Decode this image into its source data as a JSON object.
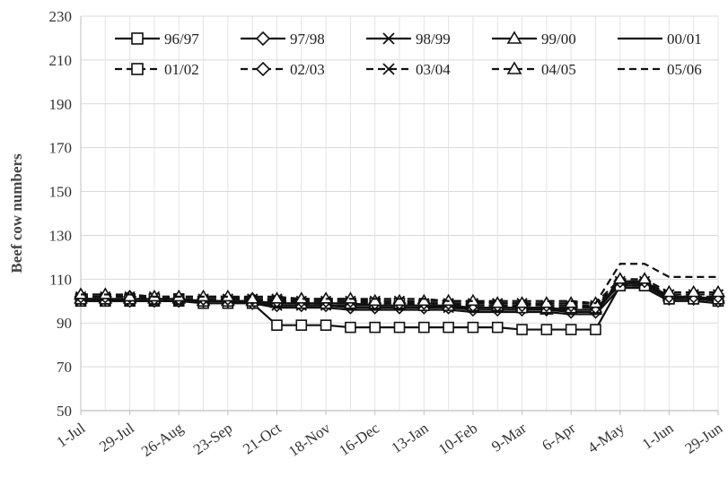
{
  "chart_data": {
    "type": "line",
    "ylabel": "Beef cow numbers",
    "ylim": [
      50,
      230
    ],
    "yticks": [
      50,
      70,
      90,
      110,
      130,
      150,
      170,
      190,
      210,
      230
    ],
    "grid": true,
    "legend_position": "top",
    "categories": [
      "1-Jul",
      "29-Jul",
      "26-Aug",
      "23-Sep",
      "21-Oct",
      "18-Nov",
      "16-Dec",
      "13-Jan",
      "10-Feb",
      "9-Mar",
      "6-Apr",
      "4-May",
      "1-Jun",
      "29-Jun"
    ],
    "x_tick_labels": [
      "1-Jul",
      "29-Jul",
      "26-Aug",
      "23-Sep",
      "21-Oct",
      "18-Nov",
      "16-Dec",
      "13-Jan",
      "10-Feb",
      "9-Mar",
      "6-Apr",
      "4-May",
      "1-Jun",
      "29-Jun"
    ],
    "x_week_index": [
      0,
      4,
      8,
      12,
      16,
      20,
      24,
      28,
      32,
      36,
      40,
      44,
      48,
      52
    ],
    "series": [
      {
        "name": "96/97",
        "style": "solid",
        "marker": "square",
        "x": [
          0,
          2,
          4,
          6,
          8,
          10,
          12,
          14,
          16,
          18,
          20,
          22,
          24,
          26,
          28,
          30,
          32,
          34,
          36,
          38,
          40,
          42,
          44,
          46,
          48,
          50,
          52
        ],
        "values": [
          100,
          100,
          100,
          100,
          100,
          99,
          99,
          99,
          89,
          89,
          89,
          88,
          88,
          88,
          88,
          88,
          88,
          88,
          87,
          87,
          87,
          87,
          107,
          107,
          101,
          101,
          100
        ]
      },
      {
        "name": "97/98",
        "style": "solid",
        "marker": "diamond",
        "x": [
          0,
          2,
          4,
          6,
          8,
          10,
          12,
          14,
          16,
          18,
          20,
          22,
          24,
          26,
          28,
          30,
          32,
          34,
          36,
          38,
          40,
          42,
          44,
          46,
          48,
          50,
          52
        ],
        "values": [
          101,
          101,
          100,
          100,
          100,
          100,
          100,
          99,
          98,
          98,
          98,
          97,
          97,
          97,
          97,
          97,
          96,
          96,
          96,
          96,
          95,
          95,
          108,
          108,
          101,
          101,
          100
        ]
      },
      {
        "name": "98/99",
        "style": "solid",
        "marker": "x",
        "x": [
          0,
          2,
          4,
          6,
          8,
          10,
          12,
          14,
          16,
          18,
          20,
          22,
          24,
          26,
          28,
          30,
          32,
          34,
          36,
          38,
          40,
          42,
          44,
          46,
          48,
          50,
          52
        ],
        "values": [
          100,
          100,
          100,
          100,
          100,
          100,
          100,
          100,
          98,
          98,
          98,
          98,
          98,
          98,
          98,
          97,
          97,
          97,
          97,
          97,
          96,
          96,
          108,
          108,
          101,
          101,
          101
        ]
      },
      {
        "name": "99/00",
        "style": "solid",
        "marker": "triangle",
        "x": [
          0,
          2,
          4,
          6,
          8,
          10,
          12,
          14,
          16,
          18,
          20,
          22,
          24,
          26,
          28,
          30,
          32,
          34,
          36,
          38,
          40,
          42,
          44,
          46,
          48,
          50,
          52
        ],
        "values": [
          101,
          101,
          101,
          101,
          101,
          100,
          100,
          100,
          99,
          99,
          99,
          99,
          98,
          98,
          98,
          98,
          97,
          97,
          97,
          96,
          96,
          96,
          109,
          109,
          102,
          102,
          101
        ]
      },
      {
        "name": "00/01",
        "style": "solid",
        "marker": "none",
        "x": [
          0,
          2,
          4,
          6,
          8,
          10,
          12,
          14,
          16,
          18,
          20,
          22,
          24,
          26,
          28,
          30,
          32,
          34,
          36,
          38,
          40,
          42,
          44,
          46,
          48,
          50,
          52
        ],
        "values": [
          100,
          100,
          100,
          100,
          100,
          100,
          100,
          99,
          97,
          97,
          97,
          96,
          96,
          96,
          96,
          96,
          95,
          95,
          95,
          95,
          94,
          94,
          106,
          106,
          100,
          100,
          99
        ]
      },
      {
        "name": "01/02",
        "style": "dashed",
        "marker": "square",
        "x": [
          0,
          2,
          4,
          6,
          8,
          10,
          12,
          14,
          16,
          18,
          20,
          22,
          24,
          26,
          28,
          30,
          32,
          34,
          36,
          38,
          40,
          42,
          44,
          46,
          48,
          50,
          52
        ],
        "values": [
          101,
          101,
          101,
          101,
          101,
          100,
          100,
          100,
          100,
          99,
          99,
          99,
          99,
          99,
          98,
          98,
          98,
          98,
          97,
          97,
          97,
          97,
          107,
          107,
          101,
          101,
          101
        ]
      },
      {
        "name": "02/03",
        "style": "dashed",
        "marker": "diamond",
        "x": [
          0,
          2,
          4,
          6,
          8,
          10,
          12,
          14,
          16,
          18,
          20,
          22,
          24,
          26,
          28,
          30,
          32,
          34,
          36,
          38,
          40,
          42,
          44,
          46,
          48,
          50,
          52
        ],
        "values": [
          102,
          102,
          102,
          101,
          101,
          101,
          101,
          101,
          100,
          100,
          100,
          100,
          99,
          99,
          99,
          99,
          98,
          98,
          98,
          98,
          98,
          97,
          109,
          109,
          102,
          102,
          102
        ]
      },
      {
        "name": "03/04",
        "style": "dashed",
        "marker": "x",
        "x": [
          0,
          2,
          4,
          6,
          8,
          10,
          12,
          14,
          16,
          18,
          20,
          22,
          24,
          26,
          28,
          30,
          32,
          34,
          36,
          38,
          40,
          42,
          44,
          46,
          48,
          50,
          52
        ],
        "values": [
          102,
          102,
          102,
          102,
          101,
          101,
          101,
          101,
          101,
          100,
          100,
          100,
          100,
          100,
          99,
          99,
          99,
          99,
          99,
          98,
          98,
          98,
          109,
          109,
          103,
          103,
          103
        ]
      },
      {
        "name": "04/05",
        "style": "dashed",
        "marker": "triangle",
        "x": [
          0,
          2,
          4,
          6,
          8,
          10,
          12,
          14,
          16,
          18,
          20,
          22,
          24,
          26,
          28,
          30,
          32,
          34,
          36,
          38,
          40,
          42,
          44,
          46,
          48,
          50,
          52
        ],
        "values": [
          103,
          103,
          102,
          102,
          102,
          102,
          102,
          101,
          101,
          101,
          101,
          101,
          100,
          100,
          100,
          100,
          100,
          99,
          99,
          99,
          99,
          99,
          110,
          110,
          104,
          104,
          104
        ]
      },
      {
        "name": "05/06",
        "style": "dashed",
        "marker": "none",
        "x": [
          0,
          2,
          4,
          6,
          8,
          10,
          12,
          14,
          16,
          18,
          20,
          22,
          24,
          26,
          28,
          30,
          32,
          34,
          36,
          38,
          40,
          42,
          44,
          46,
          48,
          50,
          52
        ],
        "values": [
          103,
          103,
          103,
          102,
          102,
          102,
          102,
          102,
          102,
          101,
          101,
          101,
          101,
          101,
          101,
          100,
          100,
          100,
          100,
          100,
          100,
          99,
          117,
          117,
          111,
          111,
          111
        ]
      }
    ]
  }
}
